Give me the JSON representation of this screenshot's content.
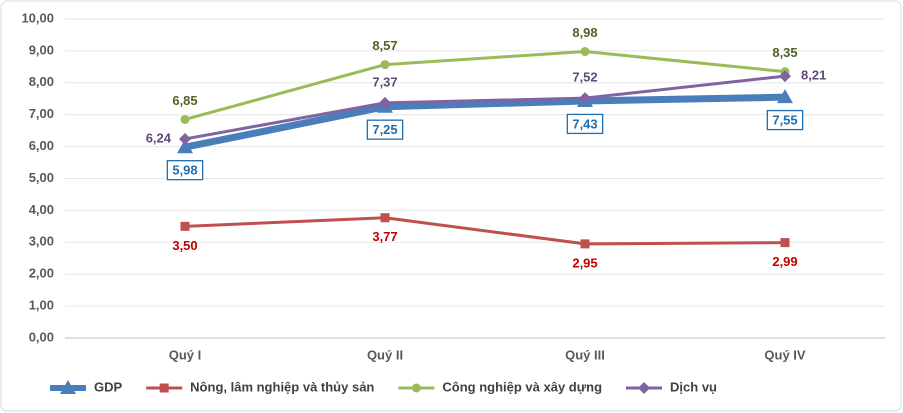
{
  "chart_data": {
    "type": "line",
    "categories": [
      "Quý I",
      "Quý II",
      "Quý III",
      "Quý IV"
    ],
    "series": [
      {
        "name": "GDP",
        "color": "#4a7ebb",
        "marker": "triangle",
        "values": [
          5.98,
          7.25,
          7.43,
          7.55
        ],
        "value_labels": [
          "5,98",
          "7,25",
          "7,43",
          "7,55"
        ]
      },
      {
        "name": "Nông, lâm nghiệp và thủy sản",
        "color": "#c0504d",
        "marker": "square",
        "values": [
          3.5,
          3.77,
          2.95,
          2.99
        ],
        "value_labels": [
          "3,50",
          "3,77",
          "2,95",
          "2,99"
        ]
      },
      {
        "name": "Công nghiệp và xây dựng",
        "color": "#9bbb59",
        "marker": "circle",
        "values": [
          6.85,
          8.57,
          8.98,
          8.35
        ],
        "value_labels": [
          "6,85",
          "8,57",
          "8,98",
          "8,35"
        ]
      },
      {
        "name": "Dịch vụ",
        "color": "#8064a2",
        "marker": "diamond",
        "values": [
          6.24,
          7.37,
          7.52,
          8.21
        ],
        "value_labels": [
          "6,24",
          "7,37",
          "7,52",
          "8,21"
        ]
      }
    ],
    "ylim": [
      0,
      10
    ],
    "yticks": [
      {
        "value": 0,
        "label": "0,00"
      },
      {
        "value": 1,
        "label": "1,00"
      },
      {
        "value": 2,
        "label": "2,00"
      },
      {
        "value": 3,
        "label": "3,00"
      },
      {
        "value": 4,
        "label": "4,00"
      },
      {
        "value": 5,
        "label": "5,00"
      },
      {
        "value": 6,
        "label": "6,00"
      },
      {
        "value": 7,
        "label": "7,00"
      },
      {
        "value": 8,
        "label": "8,00"
      },
      {
        "value": 9,
        "label": "9,00"
      },
      {
        "value": 10,
        "label": "10,00"
      }
    ],
    "grid": true,
    "legend": "bottom"
  }
}
